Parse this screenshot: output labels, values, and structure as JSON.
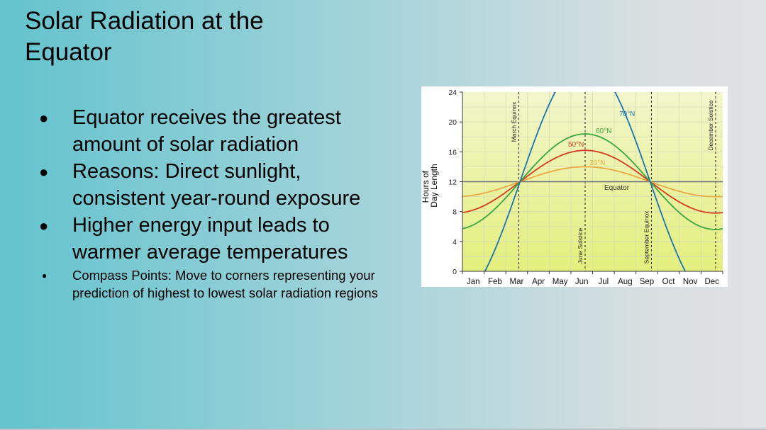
{
  "slide": {
    "title": "Solar Radiation at the Equator",
    "bullets": [
      "Equator receives the greatest amount of solar radiation",
      "Reasons: Direct sunlight, consistent year-round exposure",
      "Higher energy input leads to warmer average temperatures"
    ],
    "note": "Compass Points: Move to corners representing your prediction of highest to lowest solar radiation regions"
  },
  "chart_data": {
    "type": "line",
    "title": "",
    "xlabel": "",
    "ylabel": "Hours of Day Length",
    "ylabel_lines": [
      "Hours of",
      "Day Length"
    ],
    "categories": [
      "Jan",
      "Feb",
      "Mar",
      "Apr",
      "May",
      "Jun",
      "Jul",
      "Aug",
      "Sep",
      "Oct",
      "Nov",
      "Dec"
    ],
    "ylim": [
      0,
      24
    ],
    "yticks": [
      0,
      4,
      8,
      12,
      16,
      20,
      24
    ],
    "grid": true,
    "x_range_days": [
      0,
      365
    ],
    "series": [
      {
        "name": "Equator",
        "color": "#6b6b7a",
        "amplitude": 0.0,
        "peak_day": 172
      },
      {
        "name": "30°N",
        "color": "#e9a844",
        "amplitude": 2.0,
        "peak_day": 172
      },
      {
        "name": "50°N",
        "color": "#d33a20",
        "amplitude": 4.2,
        "peak_day": 172
      },
      {
        "name": "60°N",
        "color": "#3aa640",
        "amplitude": 6.4,
        "peak_day": 172
      },
      {
        "name": "70°N",
        "color": "#1a74b2",
        "amplitude": 16.0,
        "peak_day": 172
      }
    ],
    "markers": [
      {
        "label": "March Equinox",
        "day": 79
      },
      {
        "label": "June Solstice",
        "day": 172
      },
      {
        "label": "September Equinox",
        "day": 265
      },
      {
        "label": "December Solstice",
        "day": 355
      }
    ],
    "series_labels": {
      "Equator": "Equator",
      "30°N": "30°N",
      "50°N": "50°N",
      "60°N": "60°N",
      "70°N": "70°N"
    }
  }
}
